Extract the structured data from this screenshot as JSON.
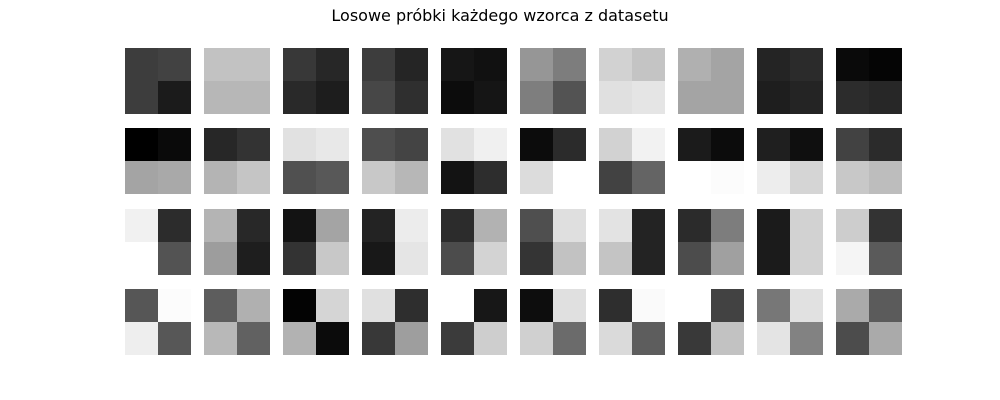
{
  "chart_data": {
    "type": "heatmap",
    "title": "Losowe próbki każdego wzorca z datasetu",
    "grid": false,
    "rows": 4,
    "cols": 10,
    "cmap": "gray",
    "value_range": [
      0,
      255
    ],
    "panels": [
      [
        [
          [
            61,
            66
          ],
          [
            61,
            27
          ]
        ],
        [
          [
            194,
            194
          ],
          [
            183,
            183
          ]
        ],
        [
          [
            56,
            39
          ],
          [
            41,
            29
          ]
        ],
        [
          [
            61,
            37
          ],
          [
            71,
            47
          ]
        ],
        [
          [
            22,
            17
          ],
          [
            12,
            21
          ]
        ],
        [
          [
            150,
            125
          ],
          [
            126,
            83
          ]
        ],
        [
          [
            210,
            196
          ],
          [
            224,
            229
          ]
        ],
        [
          [
            176,
            164
          ],
          [
            164,
            164
          ]
        ],
        [
          [
            36,
            43
          ],
          [
            30,
            36
          ]
        ],
        [
          [
            10,
            5
          ],
          [
            44,
            39
          ]
        ]
      ],
      [
        [
          [
            0,
            10
          ],
          [
            164,
            169
          ]
        ],
        [
          [
            39,
            51
          ],
          [
            180,
            197
          ]
        ],
        [
          [
            225,
            232
          ],
          [
            80,
            88
          ]
        ],
        [
          [
            78,
            68
          ],
          [
            200,
            183
          ]
        ],
        [
          [
            225,
            240
          ],
          [
            19,
            45
          ]
        ],
        [
          [
            12,
            43
          ],
          [
            220,
            255
          ]
        ],
        [
          [
            210,
            242
          ],
          [
            66,
            100
          ]
        ],
        [
          [
            27,
            12
          ],
          [
            255,
            252
          ]
        ],
        [
          [
            31,
            15
          ],
          [
            237,
            213
          ]
        ],
        [
          [
            66,
            43
          ],
          [
            200,
            189
          ]
        ]
      ],
      [
        [
          [
            241,
            44
          ],
          [
            255,
            83
          ]
        ],
        [
          [
            180,
            40
          ],
          [
            157,
            30
          ]
        ],
        [
          [
            19,
            164
          ],
          [
            51,
            200
          ]
        ],
        [
          [
            35,
            236
          ],
          [
            24,
            229
          ]
        ],
        [
          [
            44,
            178
          ],
          [
            76,
            211
          ]
        ],
        [
          [
            79,
            223
          ],
          [
            52,
            194
          ]
        ],
        [
          [
            227,
            35
          ],
          [
            196,
            35
          ]
        ],
        [
          [
            43,
            125
          ],
          [
            76,
            160
          ]
        ],
        [
          [
            27,
            210
          ],
          [
            27,
            210
          ]
        ],
        [
          [
            205,
            51
          ],
          [
            245,
            90
          ]
        ]
      ],
      [
        [
          [
            86,
            252
          ],
          [
            238,
            87
          ]
        ],
        [
          [
            93,
            176
          ],
          [
            184,
            97
          ]
        ],
        [
          [
            3,
            213
          ],
          [
            178,
            11
          ]
        ],
        [
          [
            224,
            46
          ],
          [
            56,
            158
          ]
        ],
        [
          [
            255,
            23
          ],
          [
            59,
            206
          ]
        ],
        [
          [
            13,
            224
          ],
          [
            208,
            107
          ]
        ],
        [
          [
            46,
            250
          ],
          [
            218,
            93
          ]
        ],
        [
          [
            255,
            66
          ],
          [
            57,
            194
          ]
        ],
        [
          [
            119,
            225
          ],
          [
            228,
            130
          ]
        ],
        [
          [
            170,
            91
          ],
          [
            76,
            170
          ]
        ]
      ]
    ]
  }
}
